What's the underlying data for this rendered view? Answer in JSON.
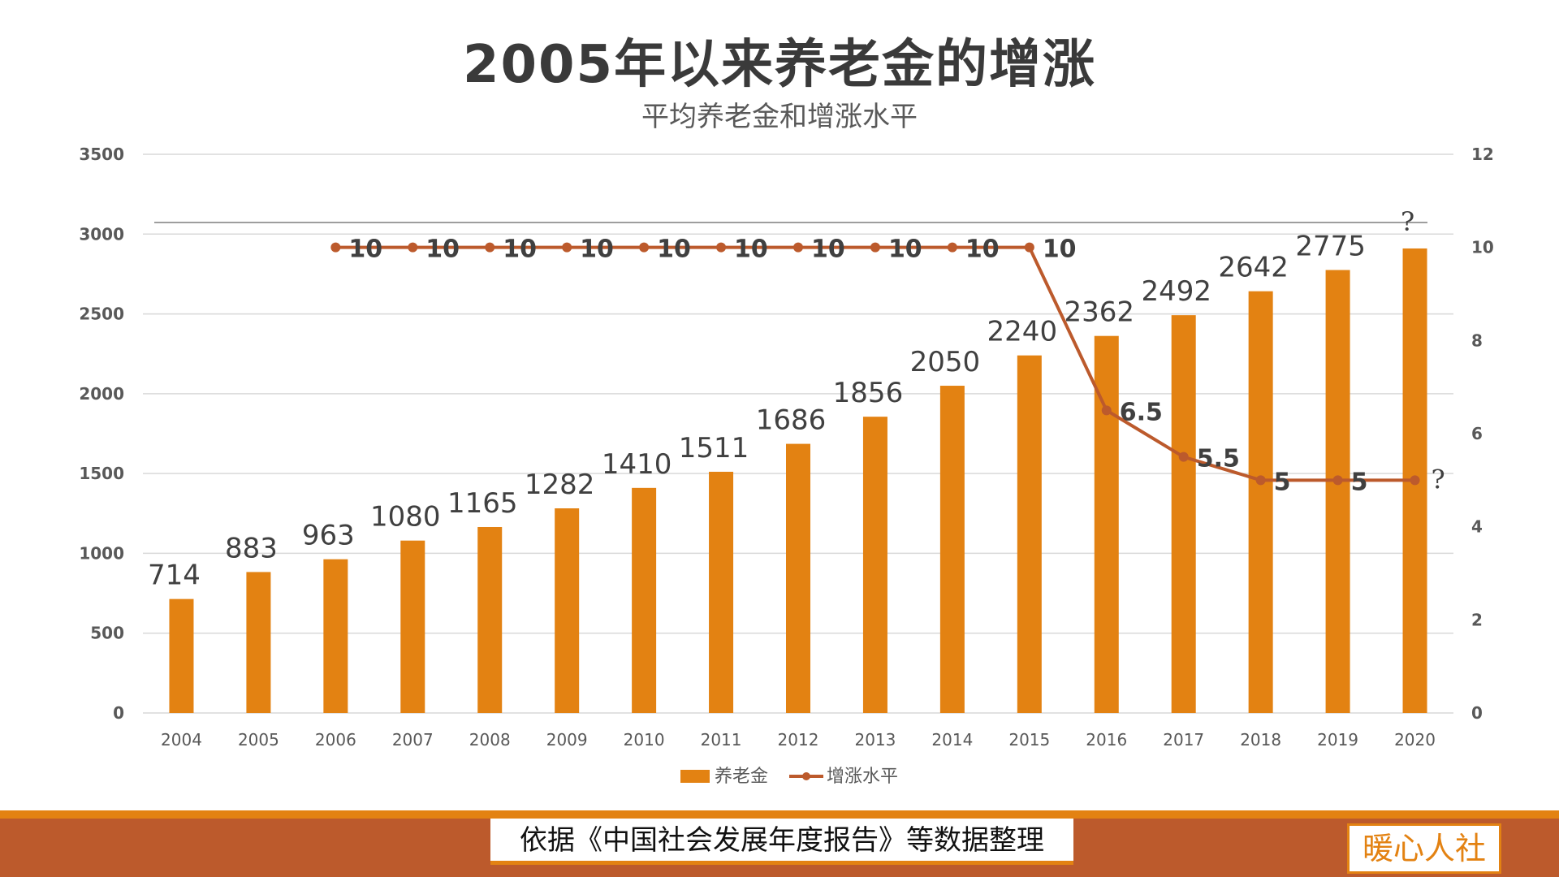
{
  "title": "2005年以来养老金的增涨",
  "subtitle": "平均养老金和增涨水平",
  "footer": {
    "source": "依据《中国社会发展年度报告》等数据整理",
    "logo": "暖心人社"
  },
  "colors": {
    "bar": "#e38212",
    "line": "#bc5a2c",
    "band_top": "#e38212",
    "band_bottom": "#bc5a2c"
  },
  "chart_data": {
    "type": "bar+line",
    "categories": [
      "2004",
      "2005",
      "2006",
      "2007",
      "2008",
      "2009",
      "2010",
      "2011",
      "2012",
      "2013",
      "2014",
      "2015",
      "2016",
      "2017",
      "2018",
      "2019",
      "2020"
    ],
    "series": [
      {
        "name": "养老金",
        "type": "bar",
        "axis": "left",
        "values": [
          714,
          883,
          963,
          1080,
          1165,
          1282,
          1410,
          1511,
          1686,
          1856,
          2050,
          2240,
          2362,
          2492,
          2642,
          2775,
          2910
        ],
        "labels": [
          "714",
          "883",
          "963",
          "1080",
          "1165",
          "1282",
          "1410",
          "1511",
          "1686",
          "1856",
          "2050",
          "2240",
          "2362",
          "2492",
          "2642",
          "2775",
          "?"
        ]
      },
      {
        "name": "增涨水平",
        "type": "line",
        "axis": "right",
        "values": [
          null,
          null,
          10,
          10,
          10,
          10,
          10,
          10,
          10,
          10,
          10,
          10,
          6.5,
          5.5,
          5,
          5,
          5
        ],
        "labels": [
          "",
          "",
          "10",
          "10",
          "10",
          "10",
          "10",
          "10",
          "10",
          "10",
          "10",
          "10",
          "6.5",
          "5.5",
          "5",
          "5",
          "?"
        ]
      }
    ],
    "y_left": {
      "range": [
        0,
        3500
      ],
      "ticks": [
        "0",
        "500",
        "1000",
        "1500",
        "2000",
        "2500",
        "3000",
        "3500"
      ]
    },
    "y_right": {
      "range": [
        0,
        12
      ],
      "ticks": [
        "0",
        "2",
        "4",
        "6",
        "8",
        "10",
        "12"
      ]
    },
    "grid": true,
    "legend": "bottom"
  }
}
